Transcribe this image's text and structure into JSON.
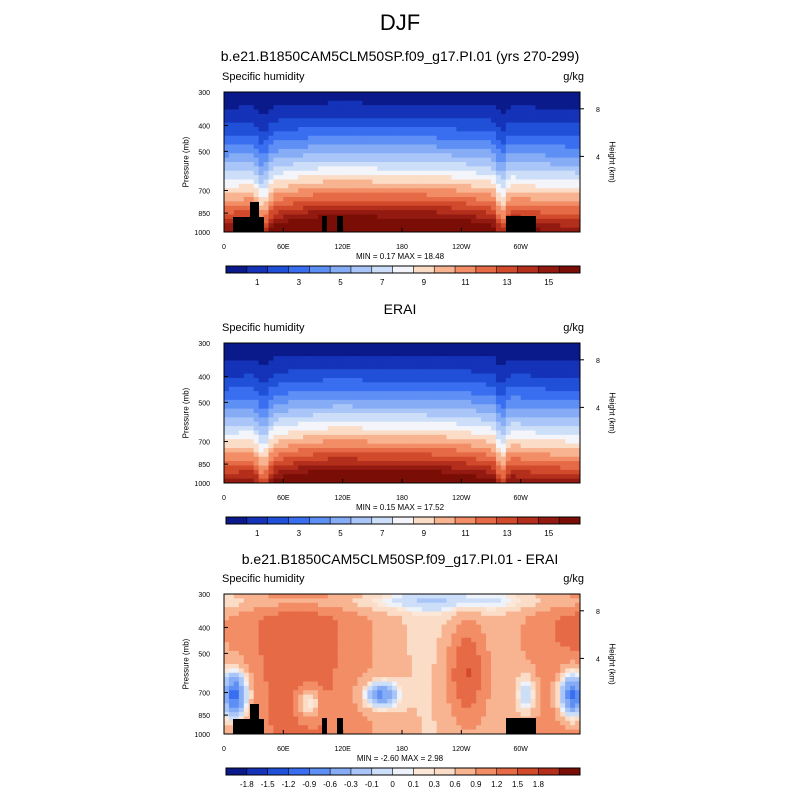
{
  "title": "DJF",
  "panels": [
    {
      "title": "b.e21.B1850CAM5CLM50SP.f09_g17.PI.01 (yrs 270-299)",
      "variable": "Specific humidity",
      "units": "g/kg",
      "minmax": "MIN =   0.17  MAX =  18.48",
      "ylabel": "Pressure (mb)",
      "y2label": "Height (km)"
    },
    {
      "title": "ERAI",
      "variable": "Specific humidity",
      "units": "g/kg",
      "minmax": "MIN =   0.15  MAX =  17.52",
      "ylabel": "Pressure (mb)",
      "y2label": "Height (km)"
    },
    {
      "title": "b.e21.B1850CAM5CLM50SP.f09_g17.PI.01 - ERAI",
      "variable": "Specific humidity",
      "units": "g/kg",
      "minmax": "MIN =  -2.60  MAX =  2.98",
      "ylabel": "Pressure (mb)",
      "y2label": "Height (km)"
    }
  ],
  "chart_data": [
    {
      "type": "heatmap",
      "title": "b.e21.B1850CAM5CLM50SP.f09_g17.PI.01 (yrs 270-299)",
      "ylabel": "Pressure (mb)",
      "y2label": "Height (km)",
      "x_ticks": [
        "0",
        "60E",
        "120E",
        "180",
        "120W",
        "60W"
      ],
      "y_ticks": [
        "300",
        "400",
        "500",
        "700",
        "850",
        "1000"
      ],
      "y2_ticks": [
        "8",
        "4"
      ],
      "colorbar_labels": [
        "1",
        "3",
        "5",
        "7",
        "9",
        "11",
        "13",
        "15"
      ],
      "colorbar_colors": [
        "#0a1a8a",
        "#1533b8",
        "#2050d8",
        "#3a6ef0",
        "#5e8ff5",
        "#86acf6",
        "#aac6f8",
        "#cddff8",
        "#f3f5fa",
        "#fbdcc6",
        "#f8b490",
        "#f28d66",
        "#e66a45",
        "#d24a2c",
        "#b32f1c",
        "#931a10",
        "#7a0e06"
      ],
      "min": 0.17,
      "max": 18.48
    },
    {
      "type": "heatmap",
      "title": "ERAI",
      "ylabel": "Pressure (mb)",
      "y2label": "Height (km)",
      "x_ticks": [
        "0",
        "60E",
        "120E",
        "180",
        "120W",
        "60W"
      ],
      "y_ticks": [
        "300",
        "400",
        "500",
        "700",
        "850",
        "1000"
      ],
      "y2_ticks": [
        "8",
        "4"
      ],
      "colorbar_labels": [
        "1",
        "3",
        "5",
        "7",
        "9",
        "11",
        "13",
        "15"
      ],
      "colorbar_colors": [
        "#0a1a8a",
        "#1533b8",
        "#2050d8",
        "#3a6ef0",
        "#5e8ff5",
        "#86acf6",
        "#aac6f8",
        "#cddff8",
        "#f3f5fa",
        "#fbdcc6",
        "#f8b490",
        "#f28d66",
        "#e66a45",
        "#d24a2c",
        "#b32f1c",
        "#931a10",
        "#7a0e06"
      ],
      "min": 0.15,
      "max": 17.52
    },
    {
      "type": "heatmap",
      "title": "b.e21.B1850CAM5CLM50SP.f09_g17.PI.01 - ERAI",
      "ylabel": "Pressure (mb)",
      "y2label": "Height (km)",
      "x_ticks": [
        "0",
        "60E",
        "120E",
        "180",
        "120W",
        "60W"
      ],
      "y_ticks": [
        "300",
        "400",
        "500",
        "700",
        "850",
        "1000"
      ],
      "y2_ticks": [
        "8",
        "4"
      ],
      "colorbar_labels": [
        "-1.8",
        "-1.5",
        "-1.2",
        "-0.9",
        "-0.6",
        "-0.3",
        "-0.1",
        "0",
        "0.1",
        "0.3",
        "0.6",
        "0.9",
        "1.2",
        "1.5",
        "1.8"
      ],
      "colorbar_colors": [
        "#0a1a8a",
        "#1533b8",
        "#2050d8",
        "#3a6ef0",
        "#5e8ff5",
        "#86acf6",
        "#aac6f8",
        "#cddff8",
        "#eef2fa",
        "#fbe8d8",
        "#fbdcc6",
        "#f8b490",
        "#f28d66",
        "#e66a45",
        "#d24a2c",
        "#b32f1c",
        "#7a0e06"
      ],
      "min": -2.6,
      "max": 2.98
    }
  ]
}
